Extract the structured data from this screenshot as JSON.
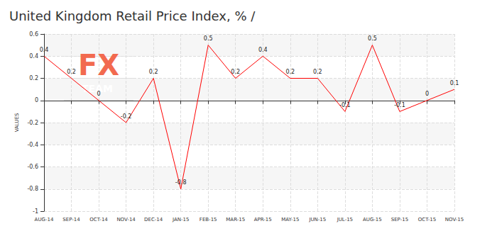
{
  "chart_data": {
    "type": "line",
    "title": "United Kingdom Retail Price Index, % /",
    "y_label": "VALUES",
    "categories": [
      "AUG-14",
      "SEP-14",
      "OCT-14",
      "NOV-14",
      "DEC-14",
      "JAN-15",
      "FEB-15",
      "MAR-15",
      "APR-15",
      "MAY-15",
      "JUN-15",
      "JUL-15",
      "AUG-15",
      "SEP-15",
      "OCT-15",
      "NOV-15"
    ],
    "values": [
      0.4,
      0.2,
      0,
      -0.2,
      0.2,
      -0.8,
      0.5,
      0.2,
      0.4,
      0.2,
      0.2,
      -0.1,
      0.5,
      -0.1,
      0,
      0.1
    ],
    "color": "#ff0000",
    "ylim": [
      -1,
      0.6
    ],
    "yticks": [
      -1,
      -0.8,
      -0.6,
      -0.4,
      -0.2,
      0,
      0.2,
      0.4,
      0.6
    ],
    "grid": true,
    "data_labels": true,
    "annotations": [
      {
        "text": "FX"
      },
      {
        "text": "TEAM"
      }
    ]
  }
}
